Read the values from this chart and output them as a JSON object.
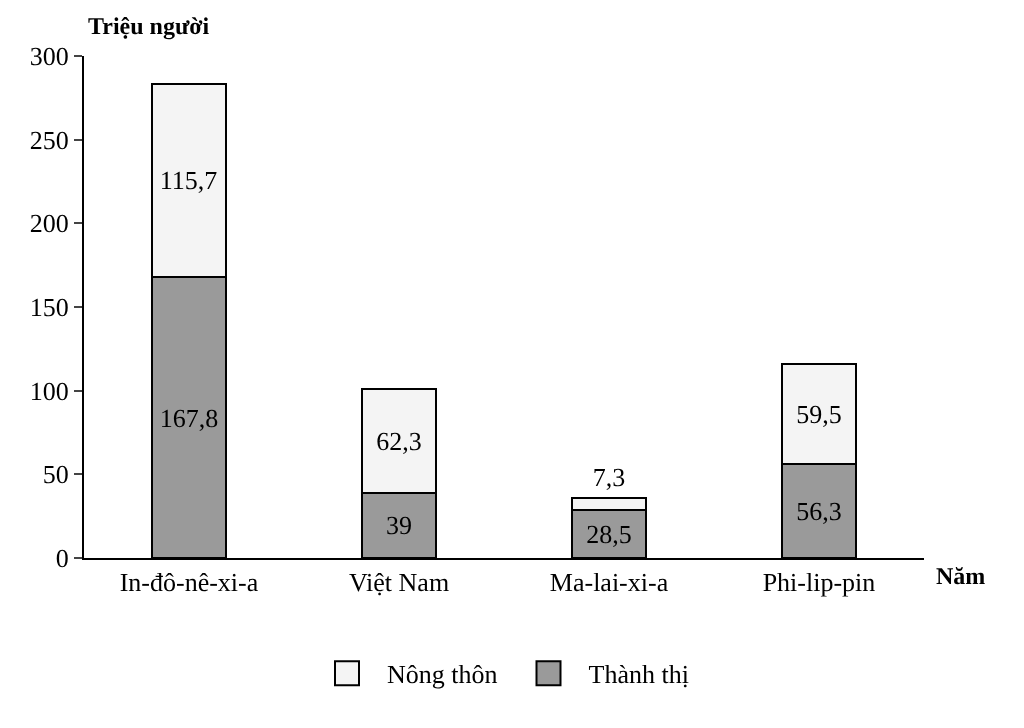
{
  "chart_data": {
    "type": "bar",
    "stacked": true,
    "ylabel": "Triệu người",
    "xlabel": "Năm",
    "categories": [
      "In-đô-nê-xi-a",
      "Việt Nam",
      "Ma-lai-xi-a",
      "Phi-lip-pin"
    ],
    "series": [
      {
        "name": "Thành thị",
        "color": "#9a9a9a",
        "values": [
          167.8,
          39,
          28.5,
          56.3
        ],
        "value_labels": [
          "167,8",
          "39",
          "28,5",
          "56,3"
        ]
      },
      {
        "name": "Nông thôn",
        "color": "#f4f4f4",
        "values": [
          115.7,
          62.3,
          7.3,
          59.5
        ],
        "value_labels": [
          "115,7",
          "62,3",
          "7,3",
          "59,5"
        ]
      }
    ],
    "ylim": [
      0,
      300
    ],
    "yticks": [
      0,
      50,
      100,
      150,
      200,
      250,
      300
    ],
    "grid": false,
    "legend": "bottom"
  }
}
